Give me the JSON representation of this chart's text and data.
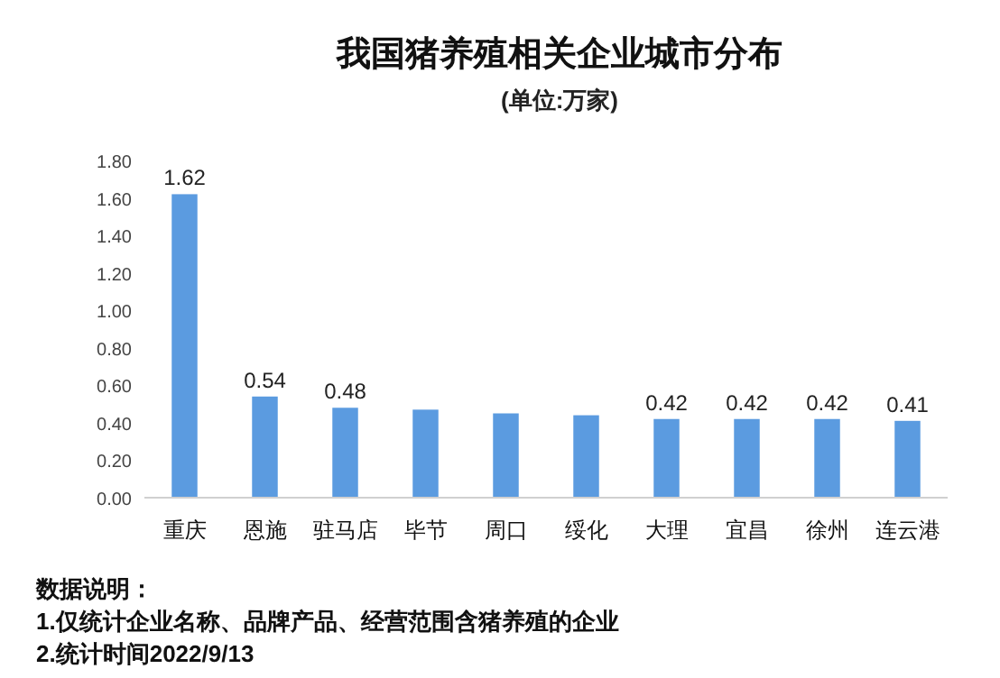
{
  "chart_data": {
    "type": "bar",
    "title": "我国猪养殖相关企业城市分布",
    "subtitle": "(单位:万家)",
    "categories": [
      "重庆",
      "恩施",
      "驻马店",
      "毕节",
      "周口",
      "绥化",
      "大理",
      "宜昌",
      "徐州",
      "连云港"
    ],
    "values": [
      1.62,
      0.54,
      0.48,
      0.47,
      0.45,
      0.44,
      0.42,
      0.42,
      0.42,
      0.41
    ],
    "value_labels": [
      "1.62",
      "0.54",
      "0.48",
      null,
      null,
      null,
      "0.42",
      "0.42",
      "0.42",
      "0.41"
    ],
    "color": "#5b9be0",
    "ylim": [
      0,
      1.8
    ],
    "yticks": [
      {
        "value": 0,
        "label": "0.00"
      },
      {
        "value": 0.2,
        "label": "0.20"
      },
      {
        "value": 0.4,
        "label": "0.40"
      },
      {
        "value": 0.6,
        "label": "0.60"
      },
      {
        "value": 0.8,
        "label": "0.80"
      },
      {
        "value": 1.0,
        "label": "1.00"
      },
      {
        "value": 1.2,
        "label": "1.20"
      },
      {
        "value": 1.4,
        "label": "1.40"
      },
      {
        "value": 1.6,
        "label": "1.60"
      },
      {
        "value": 1.8,
        "label": "1.80"
      }
    ],
    "grid": false,
    "annotations": [
      "数据说明：",
      "1.仅统计企业名称、品牌产品、经营范围含猪养殖的企业",
      "2.统计时间2022/9/13"
    ]
  }
}
